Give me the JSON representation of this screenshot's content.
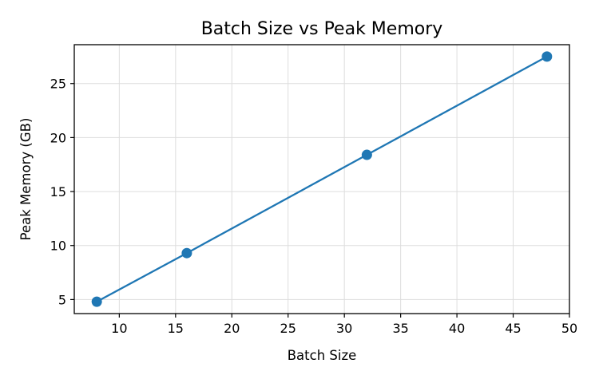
{
  "chart_data": {
    "type": "line",
    "title": "Batch Size vs Peak Memory",
    "xlabel": "Batch Size",
    "ylabel": "Peak Memory (GB)",
    "x": [
      8,
      16,
      32,
      48
    ],
    "series": [
      {
        "values": [
          4.8,
          9.3,
          18.4,
          27.5
        ]
      }
    ],
    "xlim": [
      6,
      50
    ],
    "ylim": [
      3.7,
      28.6
    ],
    "xticks": [
      10,
      15,
      20,
      25,
      30,
      35,
      40,
      45,
      50
    ],
    "yticks": [
      5,
      10,
      15,
      20,
      25
    ],
    "grid": true,
    "markers": "circle",
    "colors": {
      "series": "#1f77b4",
      "grid": "#dddddd",
      "axes": "#000000"
    }
  }
}
